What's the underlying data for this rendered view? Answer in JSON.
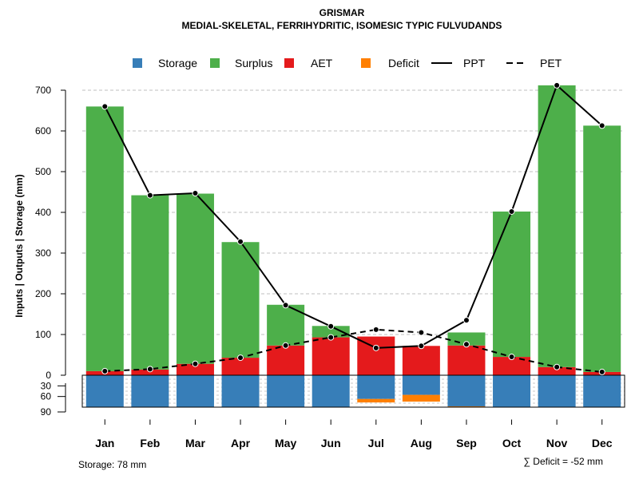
{
  "chart_data": {
    "type": "bar",
    "title": "GRISMAR",
    "subtitle": "MEDIAL-SKELETAL, FERRIHYDRITIC, ISOMESIC TYPIC FULVUDANDS",
    "ylabel": "Inputs | Outputs | Storage    (mm)",
    "categories": [
      "Jan",
      "Feb",
      "Mar",
      "Apr",
      "May",
      "Jun",
      "Jul",
      "Aug",
      "Sep",
      "Oct",
      "Nov",
      "Dec"
    ],
    "ylim": [
      0,
      750
    ],
    "yticks": [
      0,
      100,
      200,
      300,
      400,
      500,
      600,
      700
    ],
    "storage_ticks": [
      30,
      60,
      90
    ],
    "storage_capacity": 78,
    "legend": [
      {
        "name": "Storage",
        "kind": "box",
        "color": "#377EB8"
      },
      {
        "name": "Surplus",
        "kind": "box",
        "color": "#4DAF4A"
      },
      {
        "name": "AET",
        "kind": "box",
        "color": "#E41A1C"
      },
      {
        "name": "Deficit",
        "kind": "box",
        "color": "#FF7F00"
      },
      {
        "name": "PPT",
        "kind": "solid",
        "color": "#000000"
      },
      {
        "name": "PET",
        "kind": "dashed",
        "color": "#000000"
      }
    ],
    "series": [
      {
        "name": "AET",
        "color": "#E41A1C",
        "values": [
          10,
          14,
          28,
          43,
          73,
          93,
          95,
          72,
          73,
          45,
          20,
          8
        ]
      },
      {
        "name": "Surplus",
        "color": "#4DAF4A",
        "values": [
          650,
          428,
          418,
          284,
          100,
          28,
          0,
          0,
          32,
          357,
          692,
          605
        ]
      },
      {
        "name": "PPT",
        "color": "#000000",
        "values": [
          660,
          442,
          447,
          328,
          172,
          120,
          67,
          72,
          135,
          402,
          712,
          613
        ]
      },
      {
        "name": "PET",
        "color": "#000000",
        "values": [
          10,
          15,
          28,
          43,
          73,
          93,
          112,
          105,
          76,
          45,
          20,
          8
        ]
      },
      {
        "name": "Storage",
        "color": "#377EB8",
        "values": [
          78,
          78,
          78,
          78,
          78,
          78,
          58,
          48,
          76,
          78,
          78,
          78
        ]
      },
      {
        "name": "Deficit",
        "color": "#FF7F00",
        "values": [
          0,
          0,
          0,
          0,
          0,
          0,
          17,
          33,
          3,
          0,
          0,
          0
        ]
      }
    ],
    "footer_left": "Storage: 78 mm",
    "footer_right": "∑ Deficit = -52 mm"
  }
}
